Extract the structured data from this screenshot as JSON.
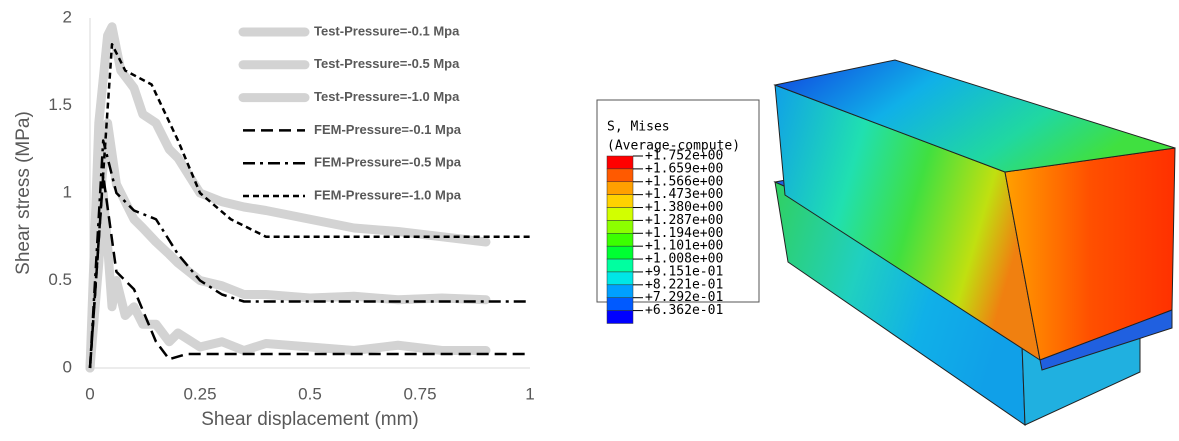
{
  "chart_data": {
    "type": "line",
    "x_label": "Shear displacement (mm)",
    "y_label": "Shear stress (MPa)",
    "xlim": [
      0,
      1
    ],
    "xticks": [
      0,
      0.25,
      0.5,
      0.75,
      1
    ],
    "ylim": [
      0,
      2
    ],
    "yticks": [
      0,
      0.5,
      1,
      1.5,
      2
    ],
    "legend": "upper right",
    "series": [
      {
        "name": "Test-Pressure=-0.1 Mpa",
        "color": "#d3d3d3",
        "style": "solid",
        "width": 9,
        "x": [
          0,
          0.02,
          0.03,
          0.04,
          0.05,
          0.06,
          0.08,
          0.1,
          0.12,
          0.15,
          0.18,
          0.2,
          0.25,
          0.3,
          0.35,
          0.4,
          0.5,
          0.6,
          0.7,
          0.8,
          0.9
        ],
        "values": [
          0,
          0.6,
          1.0,
          0.7,
          0.35,
          0.5,
          0.3,
          0.35,
          0.25,
          0.25,
          0.15,
          0.2,
          0.12,
          0.15,
          0.1,
          0.14,
          0.12,
          0.1,
          0.13,
          0.1,
          0.1
        ]
      },
      {
        "name": "Test-Pressure=-0.5 Mpa",
        "color": "#d3d3d3",
        "style": "solid",
        "width": 9,
        "x": [
          0,
          0.02,
          0.04,
          0.06,
          0.08,
          0.1,
          0.12,
          0.15,
          0.18,
          0.2,
          0.25,
          0.3,
          0.35,
          0.4,
          0.5,
          0.6,
          0.7,
          0.8,
          0.9
        ],
        "values": [
          0,
          0.9,
          1.4,
          1.05,
          0.95,
          0.85,
          0.8,
          0.72,
          0.65,
          0.6,
          0.5,
          0.47,
          0.42,
          0.42,
          0.4,
          0.41,
          0.39,
          0.4,
          0.39
        ]
      },
      {
        "name": "Test-Pressure=-1.0 Mpa",
        "color": "#d3d3d3",
        "style": "solid",
        "width": 9,
        "x": [
          0,
          0.02,
          0.04,
          0.05,
          0.07,
          0.1,
          0.12,
          0.15,
          0.18,
          0.2,
          0.25,
          0.3,
          0.35,
          0.4,
          0.5,
          0.6,
          0.7,
          0.8,
          0.9
        ],
        "values": [
          0,
          1.4,
          1.9,
          1.95,
          1.7,
          1.6,
          1.45,
          1.4,
          1.25,
          1.2,
          1.0,
          0.95,
          0.92,
          0.9,
          0.85,
          0.8,
          0.78,
          0.75,
          0.72
        ]
      },
      {
        "name": "FEM-Pressure=-0.1 Mpa",
        "color": "#000000",
        "style": "dashed",
        "width": 2.5,
        "x": [
          0,
          0.03,
          0.06,
          0.1,
          0.15,
          0.18,
          0.22,
          1
        ],
        "values": [
          0,
          1.1,
          0.55,
          0.45,
          0.15,
          0.05,
          0.08,
          0.08
        ]
      },
      {
        "name": "FEM-Pressure=-0.5 Mpa",
        "color": "#000000",
        "style": "dashdot",
        "width": 2.5,
        "x": [
          0,
          0.03,
          0.06,
          0.1,
          0.15,
          0.2,
          0.25,
          0.3,
          0.35,
          1
        ],
        "values": [
          0,
          1.3,
          1.0,
          0.9,
          0.85,
          0.65,
          0.5,
          0.42,
          0.38,
          0.38
        ]
      },
      {
        "name": "FEM-Pressure=-1.0 Mpa",
        "color": "#000000",
        "style": "shortdash",
        "width": 2.5,
        "x": [
          0,
          0.05,
          0.08,
          0.14,
          0.2,
          0.25,
          0.32,
          0.4,
          1
        ],
        "values": [
          0,
          1.85,
          1.7,
          1.62,
          1.3,
          1.0,
          0.85,
          0.75,
          0.75
        ]
      }
    ]
  },
  "contour": {
    "title": "S, Mises",
    "subtitle": "(Average-compute)",
    "labels": [
      "+1.752e+00",
      "+1.659e+00",
      "+1.566e+00",
      "+1.473e+00",
      "+1.380e+00",
      "+1.287e+00",
      "+1.194e+00",
      "+1.101e+00",
      "+1.008e+00",
      "+9.151e-01",
      "+8.221e-01",
      "+7.292e-01",
      "+6.362e-01"
    ],
    "colors": [
      "#ff0000",
      "#ff5a00",
      "#ffa000",
      "#ffd200",
      "#d2ff00",
      "#8cff00",
      "#3cff00",
      "#00ff32",
      "#00ffa0",
      "#00e6e6",
      "#00a0ff",
      "#005aff",
      "#0000ff"
    ]
  }
}
